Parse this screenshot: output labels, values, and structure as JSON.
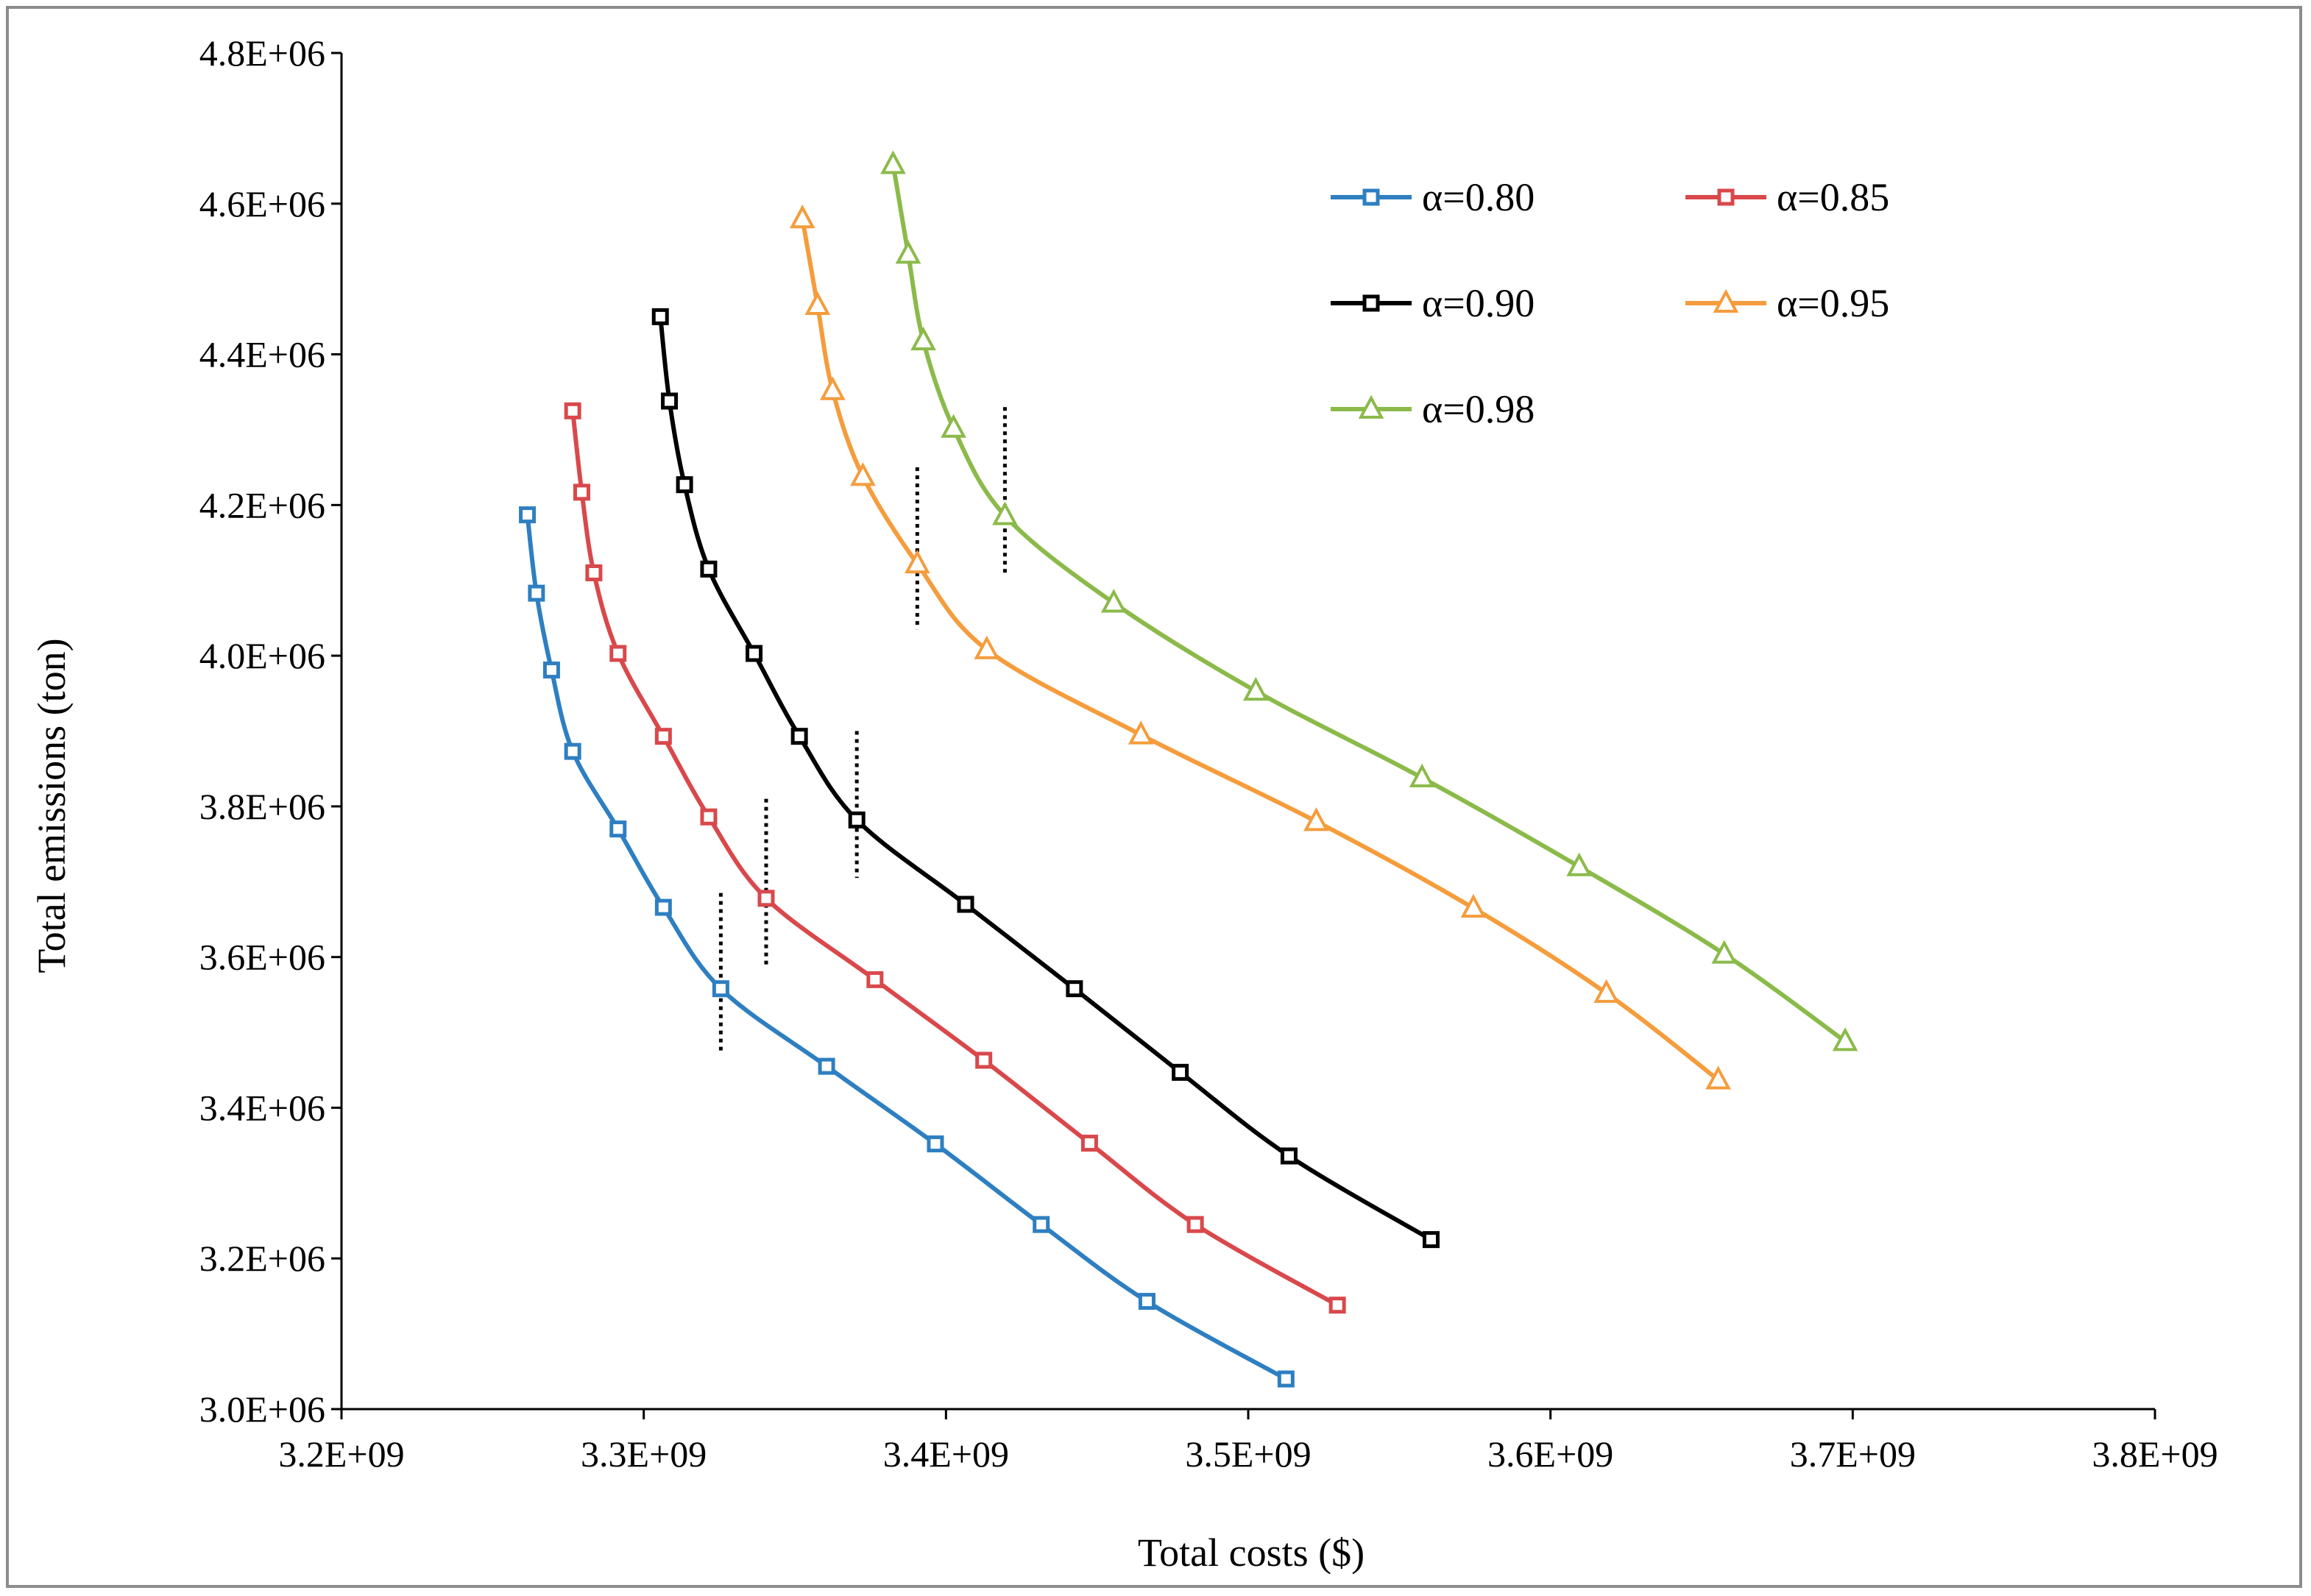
{
  "chart_data": {
    "type": "line",
    "title": "",
    "xlabel": "Total costs ($)",
    "ylabel": "Total emissions (ton)",
    "xlim": [
      3200000000.0,
      3800000000.0
    ],
    "ylim": [
      3000000.0,
      4800000.0
    ],
    "xticks": [
      3200000000.0,
      3300000000.0,
      3400000000.0,
      3500000000.0,
      3600000000.0,
      3700000000.0,
      3800000000.0
    ],
    "xtick_labels": [
      "3.2E+09",
      "3.3E+09",
      "3.4E+09",
      "3.5E+09",
      "3.6E+09",
      "3.7E+09",
      "3.8E+09"
    ],
    "yticks": [
      3000000.0,
      3200000.0,
      3400000.0,
      3600000.0,
      3800000.0,
      4000000.0,
      4200000.0,
      4400000.0,
      4600000.0,
      4800000.0
    ],
    "ytick_labels": [
      "3.0E+06",
      "3.2E+06",
      "3.4E+06",
      "3.6E+06",
      "3.8E+06",
      "4.0E+06",
      "4.2E+06",
      "4.4E+06",
      "4.6E+06",
      "4.8E+06"
    ],
    "grid": false,
    "legend_position": "top-right",
    "series": [
      {
        "name": "α=0.80",
        "color": "#2e7fc1",
        "marker": "square",
        "x": [
          3261500000.0,
          3264500000.0,
          3269500000.0,
          3276500000.0,
          3291500000.0,
          3306500000.0,
          3325500000.0,
          3360500000.0,
          3396500000.0,
          3431500000.0,
          3466500000.0,
          3512500000.0
        ],
        "y": [
          4187000.0,
          4083000.0,
          3981000.0,
          3873000.0,
          3770000.0,
          3666000.0,
          3558000.0,
          3455000.0,
          3352000.0,
          3245000.0,
          3143000.0,
          3040000.0
        ]
      },
      {
        "name": "α=0.85",
        "color": "#d9484b",
        "marker": "square",
        "x": [
          3276500000.0,
          3279500000.0,
          3283500000.0,
          3291500000.0,
          3306500000.0,
          3321500000.0,
          3340500000.0,
          3376500000.0,
          3412500000.0,
          3447500000.0,
          3482500000.0,
          3529500000.0
        ],
        "y": [
          4325000.0,
          4217000.0,
          4110000.0,
          4003000.0,
          3893000.0,
          3786000.0,
          3678000.0,
          3570000.0,
          3463000.0,
          3353000.0,
          3245000.0,
          3138000.0
        ]
      },
      {
        "name": "α=0.90",
        "color": "#000000",
        "marker": "square",
        "x": [
          3305500000.0,
          3308500000.0,
          3313500000.0,
          3321500000.0,
          3336500000.0,
          3351500000.0,
          3370500000.0,
          3406500000.0,
          3442500000.0,
          3477500000.0,
          3513500000.0,
          3560500000.0
        ],
        "y": [
          4450000.0,
          4338000.0,
          4227000.0,
          4115000.0,
          4003000.0,
          3893000.0,
          3782000.0,
          3670000.0,
          3558000.0,
          3447000.0,
          3336000.0,
          3225000.0
        ]
      },
      {
        "name": "α=0.95",
        "color": "#f59c3c",
        "marker": "triangle",
        "x": [
          3352500000.0,
          3357500000.0,
          3362500000.0,
          3372500000.0,
          3390500000.0,
          3413500000.0,
          3464500000.0,
          3522500000.0,
          3574500000.0,
          3618500000.0,
          3655500000.0
        ],
        "y": [
          4580000.0,
          4465000.0,
          4352000.0,
          4238000.0,
          4122000.0,
          4008000.0,
          3895000.0,
          3780000.0,
          3665000.0,
          3552000.0,
          3437000.0
        ]
      },
      {
        "name": "α=0.98",
        "color": "#8bba4a",
        "marker": "triangle",
        "x": [
          3382500000.0,
          3387500000.0,
          3392500000.0,
          3402500000.0,
          3419500000.0,
          3455500000.0,
          3502500000.0,
          3557500000.0,
          3609500000.0,
          3657500000.0,
          3697500000.0
        ],
        "y": [
          4652000.0,
          4533000.0,
          4418000.0,
          4302000.0,
          4186000.0,
          4070000.0,
          3953000.0,
          3838000.0,
          3720000.0,
          3604000.0,
          3488000.0
        ]
      }
    ],
    "annotations": [
      {
        "type": "vline-dotted",
        "x": 3325500000.0,
        "y_range": [
          3475000.0,
          3685000.0
        ]
      },
      {
        "type": "vline-dotted",
        "x": 3340500000.0,
        "y_range": [
          3590000.0,
          3810000.0
        ]
      },
      {
        "type": "vline-dotted",
        "x": 3370500000.0,
        "y_range": [
          3705000.0,
          3900000.0
        ]
      },
      {
        "type": "vline-dotted",
        "x": 3390500000.0,
        "y_range": [
          4035000.0,
          4250000.0
        ]
      },
      {
        "type": "vline-dotted",
        "x": 3419500000.0,
        "y_range": [
          4110000.0,
          4330000.0
        ]
      }
    ]
  }
}
